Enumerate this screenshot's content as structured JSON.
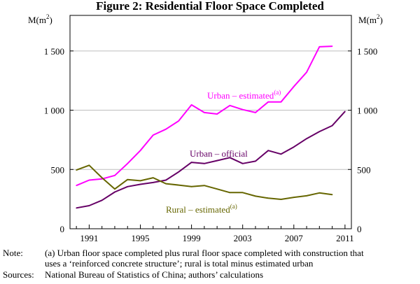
{
  "chart_data": {
    "type": "line",
    "title": "Figure 2: Residential Floor Space Completed",
    "ylabel_left": "M(m",
    "ylabel_right": "M(m",
    "ylabel_superscript": "2",
    "ylim": [
      0,
      1800
    ],
    "xlim": [
      1989.5,
      2011.5
    ],
    "y_ticks": [
      0,
      500,
      1000,
      1500
    ],
    "y_tick_labels": [
      "0",
      "500",
      "1 000",
      "1 500"
    ],
    "x_ticks": [
      1991,
      1995,
      1999,
      2003,
      2007,
      2011
    ],
    "x_tick_labels": [
      "1991",
      "1995",
      "1999",
      "2003",
      "2007",
      "2011"
    ],
    "grid": "horizontal",
    "series": [
      {
        "name": "Urban – estimated",
        "superscript": "(a)",
        "color": "#ff00ff",
        "x": [
          1990,
          1991,
          1992,
          1993,
          1994,
          1995,
          1996,
          1997,
          1998,
          1999,
          2000,
          2001,
          2002,
          2003,
          2004,
          2005,
          2006,
          2007,
          2008,
          2009,
          2010
        ],
        "values": [
          365,
          410,
          420,
          450,
          550,
          660,
          790,
          840,
          910,
          1045,
          980,
          968,
          1040,
          1005,
          980,
          1070,
          1070,
          1200,
          1320,
          1535,
          1540
        ]
      },
      {
        "name": "Urban – official",
        "superscript": "",
        "color": "#660066",
        "x": [
          1990,
          1991,
          1992,
          1993,
          1994,
          1995,
          1996,
          1997,
          1998,
          1999,
          2000,
          2001,
          2002,
          2003,
          2004,
          2005,
          2006,
          2007,
          2008,
          2009,
          2010,
          2011
        ],
        "values": [
          175,
          195,
          240,
          310,
          355,
          375,
          390,
          410,
          480,
          560,
          550,
          575,
          600,
          550,
          570,
          660,
          630,
          690,
          760,
          820,
          870,
          990
        ]
      },
      {
        "name": "Rural – estimated",
        "superscript": "(a)",
        "color": "#666600",
        "x": [
          1990,
          1991,
          1992,
          1993,
          1994,
          1995,
          1996,
          1997,
          1998,
          1999,
          2000,
          2001,
          2002,
          2003,
          2004,
          2005,
          2006,
          2007,
          2008,
          2009,
          2010
        ],
        "values": [
          495,
          535,
          430,
          335,
          415,
          405,
          430,
          380,
          368,
          355,
          365,
          335,
          305,
          305,
          275,
          258,
          248,
          265,
          278,
          302,
          288
        ]
      }
    ]
  },
  "notes": {
    "note_label": "Note:",
    "note_line1": "(a) Urban floor space completed plus rural floor space completed with construction that",
    "note_line2": "uses a ‘reinforced concrete structure’; rural is total minus estimated urban",
    "sources_label": "Sources:",
    "sources_text": "National Bureau of Statistics of China; authors’ calculations"
  }
}
